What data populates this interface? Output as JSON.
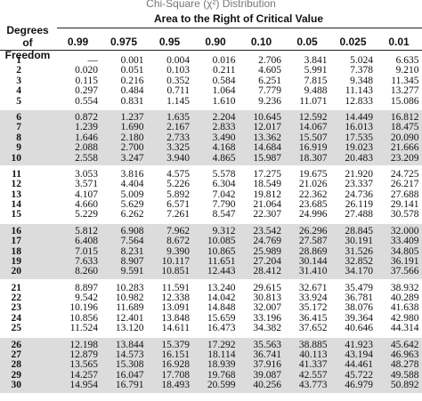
{
  "title": "Chi-Square (χ²) Distribution",
  "column_group_label": "Area to the Right of Critical Value",
  "row_header_label": "Degrees of Freedom",
  "columns": [
    "0.99",
    "0.975",
    "0.95",
    "0.90",
    "0.10",
    "0.05",
    "0.025",
    "0.01"
  ],
  "rows": [
    {
      "df": "1",
      "values": [
        "—",
        "0.001",
        "0.004",
        "0.016",
        "2.706",
        "3.841",
        "5.024",
        "6.635"
      ]
    },
    {
      "df": "2",
      "values": [
        "0.020",
        "0.051",
        "0.103",
        "0.211",
        "4.605",
        "5.991",
        "7.378",
        "9.210"
      ]
    },
    {
      "df": "3",
      "values": [
        "0.115",
        "0.216",
        "0.352",
        "0.584",
        "6.251",
        "7.815",
        "9.348",
        "11.345"
      ]
    },
    {
      "df": "4",
      "values": [
        "0.297",
        "0.484",
        "0.711",
        "1.064",
        "7.779",
        "9.488",
        "11.143",
        "13.277"
      ]
    },
    {
      "df": "5",
      "values": [
        "0.554",
        "0.831",
        "1.145",
        "1.610",
        "9.236",
        "11.071",
        "12.833",
        "15.086"
      ]
    },
    {
      "df": "6",
      "values": [
        "0.872",
        "1.237",
        "1.635",
        "2.204",
        "10.645",
        "12.592",
        "14.449",
        "16.812"
      ]
    },
    {
      "df": "7",
      "values": [
        "1.239",
        "1.690",
        "2.167",
        "2.833",
        "12.017",
        "14.067",
        "16.013",
        "18.475"
      ]
    },
    {
      "df": "8",
      "values": [
        "1.646",
        "2.180",
        "2.733",
        "3.490",
        "13.362",
        "15.507",
        "17.535",
        "20.090"
      ]
    },
    {
      "df": "9",
      "values": [
        "2.088",
        "2.700",
        "3.325",
        "4.168",
        "14.684",
        "16.919",
        "19.023",
        "21.666"
      ]
    },
    {
      "df": "10",
      "values": [
        "2.558",
        "3.247",
        "3.940",
        "4.865",
        "15.987",
        "18.307",
        "20.483",
        "23.209"
      ]
    },
    {
      "df": "11",
      "values": [
        "3.053",
        "3.816",
        "4.575",
        "5.578",
        "17.275",
        "19.675",
        "21.920",
        "24.725"
      ]
    },
    {
      "df": "12",
      "values": [
        "3.571",
        "4.404",
        "5.226",
        "6.304",
        "18.549",
        "21.026",
        "23.337",
        "26.217"
      ]
    },
    {
      "df": "13",
      "values": [
        "4.107",
        "5.009",
        "5.892",
        "7.042",
        "19.812",
        "22.362",
        "24.736",
        "27.688"
      ]
    },
    {
      "df": "14",
      "values": [
        "4.660",
        "5.629",
        "6.571",
        "7.790",
        "21.064",
        "23.685",
        "26.119",
        "29.141"
      ]
    },
    {
      "df": "15",
      "values": [
        "5.229",
        "6.262",
        "7.261",
        "8.547",
        "22.307",
        "24.996",
        "27.488",
        "30.578"
      ]
    },
    {
      "df": "16",
      "values": [
        "5.812",
        "6.908",
        "7.962",
        "9.312",
        "23.542",
        "26.296",
        "28.845",
        "32.000"
      ]
    },
    {
      "df": "17",
      "values": [
        "6.408",
        "7.564",
        "8.672",
        "10.085",
        "24.769",
        "27.587",
        "30.191",
        "33.409"
      ]
    },
    {
      "df": "18",
      "values": [
        "7.015",
        "8.231",
        "9.390",
        "10.865",
        "25.989",
        "28.869",
        "31.526",
        "34.805"
      ]
    },
    {
      "df": "19",
      "values": [
        "7.633",
        "8.907",
        "10.117",
        "11.651",
        "27.204",
        "30.144",
        "32.852",
        "36.191"
      ]
    },
    {
      "df": "20",
      "values": [
        "8.260",
        "9.591",
        "10.851",
        "12.443",
        "28.412",
        "31.410",
        "34.170",
        "37.566"
      ]
    },
    {
      "df": "21",
      "values": [
        "8.897",
        "10.283",
        "11.591",
        "13.240",
        "29.615",
        "32.671",
        "35.479",
        "38.932"
      ]
    },
    {
      "df": "22",
      "values": [
        "9.542",
        "10.982",
        "12.338",
        "14.042",
        "30.813",
        "33.924",
        "36.781",
        "40.289"
      ]
    },
    {
      "df": "23",
      "values": [
        "10.196",
        "11.689",
        "13.091",
        "14.848",
        "32.007",
        "35.172",
        "38.076",
        "41.638"
      ]
    },
    {
      "df": "24",
      "values": [
        "10.856",
        "12.401",
        "13.848",
        "15.659",
        "33.196",
        "36.415",
        "39.364",
        "42.980"
      ]
    },
    {
      "df": "25",
      "values": [
        "11.524",
        "13.120",
        "14.611",
        "16.473",
        "34.382",
        "37.652",
        "40.646",
        "44.314"
      ]
    },
    {
      "df": "26",
      "values": [
        "12.198",
        "13.844",
        "15.379",
        "17.292",
        "35.563",
        "38.885",
        "41.923",
        "45.642"
      ]
    },
    {
      "df": "27",
      "values": [
        "12.879",
        "14.573",
        "16.151",
        "18.114",
        "36.741",
        "40.113",
        "43.194",
        "46.963"
      ]
    },
    {
      "df": "28",
      "values": [
        "13.565",
        "15.308",
        "16.928",
        "18.939",
        "37.916",
        "41.337",
        "44.461",
        "48.278"
      ]
    },
    {
      "df": "29",
      "values": [
        "14.257",
        "16.047",
        "17.708",
        "19.768",
        "39.087",
        "42.557",
        "45.722",
        "49.588"
      ]
    },
    {
      "df": "30",
      "values": [
        "14.954",
        "16.791",
        "18.493",
        "20.599",
        "40.256",
        "43.773",
        "46.979",
        "50.892"
      ]
    }
  ]
}
